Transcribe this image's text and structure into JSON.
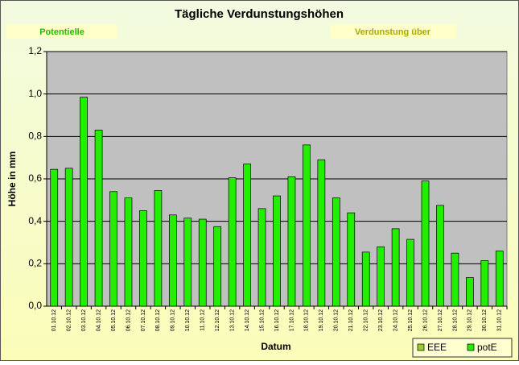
{
  "chart_data": {
    "type": "bar",
    "title": "Tägliche Verdunstungshöhen",
    "annotations": [
      "Potentielle",
      "Verdunstung über"
    ],
    "xlabel": "Datum",
    "ylabel": "Höhe in mm",
    "categories": [
      "01.10.12",
      "02.10.12",
      "03.10.12",
      "04.10.12",
      "05.10.12",
      "06.10.12",
      "07.10.12",
      "08.10.12",
      "09.10.12",
      "10.10.12",
      "11.10.12",
      "12.10.12",
      "13.10.12",
      "14.10.12",
      "15.10.12",
      "16.10.12",
      "17.10.12",
      "18.10.12",
      "19.10.12",
      "20.10.12",
      "21.10.12",
      "22.10.12",
      "23.10.12",
      "24.10.12",
      "25.10.12",
      "26.10.12",
      "27.10.12",
      "28.10.12",
      "29.10.12",
      "30.10.12",
      "31.10.12"
    ],
    "series": [
      {
        "name": "EEE",
        "color": "#99cc33",
        "values": [
          null,
          null,
          null,
          null,
          null,
          null,
          null,
          null,
          null,
          null,
          null,
          null,
          null,
          null,
          null,
          null,
          null,
          null,
          null,
          null,
          null,
          null,
          null,
          null,
          null,
          null,
          null,
          null,
          null,
          null,
          null
        ]
      },
      {
        "name": "potE",
        "color": "#22ee00",
        "values": [
          0.645,
          0.65,
          0.985,
          0.83,
          0.54,
          0.51,
          0.45,
          0.545,
          0.43,
          0.415,
          0.41,
          0.375,
          0.605,
          0.67,
          0.46,
          0.52,
          0.61,
          0.76,
          0.69,
          0.51,
          0.44,
          0.255,
          0.28,
          0.365,
          0.315,
          0.59,
          0.475,
          0.25,
          0.135,
          0.215,
          0.26
        ]
      }
    ],
    "ylim": [
      0,
      1.2
    ],
    "yticks": [
      {
        "value": 0,
        "label": "0,0"
      },
      {
        "value": 0.2,
        "label": "0,2"
      },
      {
        "value": 0.4,
        "label": "0,4"
      },
      {
        "value": 0.6,
        "label": "0,6"
      },
      {
        "value": 0.8,
        "label": "0,8"
      },
      {
        "value": 1,
        "label": "1,0"
      },
      {
        "value": 1.2,
        "label": "1,2"
      }
    ],
    "grid": true,
    "legend": "bottom-right"
  }
}
